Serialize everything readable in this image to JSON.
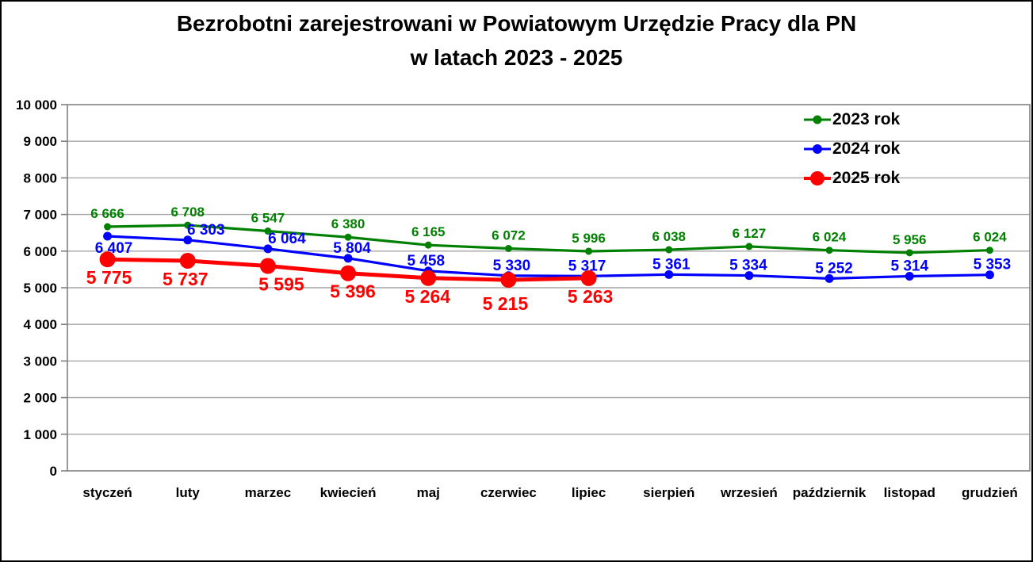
{
  "figure": {
    "title_line1": "Bezrobotni zarejestrowani w Powiatowym Urzędzie Pracy dla PN",
    "title_line2": "w latach 2023 - 2025"
  },
  "chart_data": {
    "type": "line",
    "title": "Bezrobotni zarejestrowani w Powiatowym Urzędzie Pracy dla PN w latach 2023 - 2025",
    "categories": [
      "styczeń",
      "luty",
      "marzec",
      "kwiecień",
      "maj",
      "czerwiec",
      "lipiec",
      "sierpień",
      "wrzesień",
      "październik",
      "listopad",
      "grudzień"
    ],
    "series": [
      {
        "name": "2023 rok",
        "color": "#008000",
        "values": [
          6666,
          6708,
          6547,
          6380,
          6165,
          6072,
          5996,
          6038,
          6127,
          6024,
          5956,
          6024
        ]
      },
      {
        "name": "2024 rok",
        "color": "#0000ff",
        "values": [
          6407,
          6303,
          6064,
          5804,
          5458,
          5330,
          5317,
          5361,
          5334,
          5252,
          5314,
          5353
        ]
      },
      {
        "name": "2025 rok",
        "color": "#ff0000",
        "values": [
          5775,
          5737,
          5595,
          5396,
          5264,
          5215,
          5263
        ]
      }
    ],
    "ylim": [
      0,
      10000
    ],
    "ytick_step": 1000,
    "y_tick_labels": [
      "0",
      "1 000",
      "2 000",
      "3 000",
      "4 000",
      "5 000",
      "6 000",
      "7 000",
      "8 000",
      "9 000",
      "10 000"
    ],
    "grid": "horizontal",
    "legend_position": "top-right",
    "data_labels": true,
    "number_format": "space-thousands"
  }
}
